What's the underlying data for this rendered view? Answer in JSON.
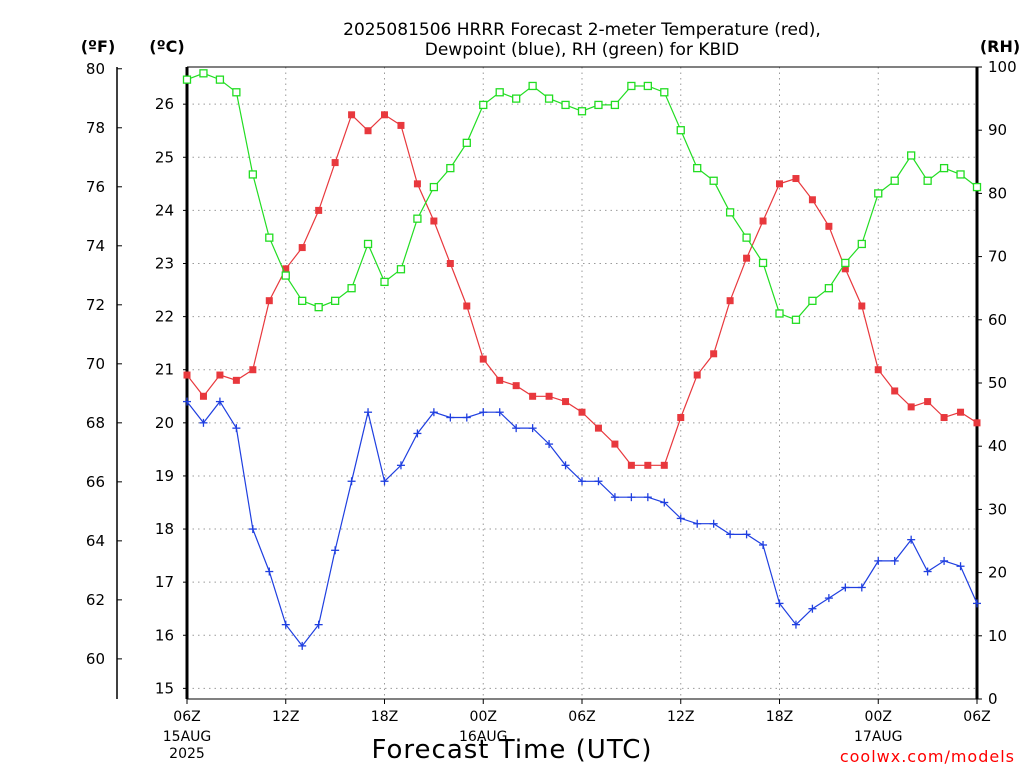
{
  "chart_data": {
    "type": "line",
    "title_line1": "2025081506 HRRR Forecast 2-meter Temperature (red),",
    "title_line2": "Dewpoint (blue), RH (green) for KBID",
    "xlabel": "Forecast Time (UTC)",
    "credit": "coolwx.com/models",
    "unit_labels": {
      "fahrenheit": "(ºF)",
      "celsius": "(ºC)",
      "rh": "(RH)"
    },
    "x_ticks": [
      {
        "hour": 0,
        "label": "06Z",
        "date": "15AUG",
        "year": "2025"
      },
      {
        "hour": 6,
        "label": "12Z"
      },
      {
        "hour": 12,
        "label": "18Z"
      },
      {
        "hour": 18,
        "label": "00Z",
        "date": "16AUG"
      },
      {
        "hour": 24,
        "label": "06Z"
      },
      {
        "hour": 30,
        "label": "12Z"
      },
      {
        "hour": 36,
        "label": "18Z"
      },
      {
        "hour": 42,
        "label": "00Z",
        "date": "17AUG"
      },
      {
        "hour": 48,
        "label": "06Z"
      }
    ],
    "xlim": [
      0,
      48
    ],
    "celsius_axis": {
      "ylim": [
        14.8,
        26.7
      ],
      "ticks": [
        15,
        16,
        17,
        18,
        19,
        20,
        21,
        22,
        23,
        24,
        25,
        26
      ]
    },
    "fahrenheit_ticks": [
      60,
      62,
      64,
      66,
      68,
      70,
      72,
      74,
      76,
      78,
      80
    ],
    "rh_axis": {
      "ylim": [
        0,
        100
      ],
      "ticks": [
        0,
        10,
        20,
        30,
        40,
        50,
        60,
        70,
        80,
        90,
        100
      ]
    },
    "grid": true,
    "series": [
      {
        "name": "2-meter Temperature",
        "axis": "celsius",
        "color": "#e8383d",
        "marker": "filled-square",
        "values": [
          20.9,
          20.5,
          20.9,
          20.8,
          21.0,
          22.3,
          22.9,
          23.3,
          24.0,
          24.9,
          25.8,
          25.5,
          25.8,
          25.6,
          24.5,
          23.8,
          23.0,
          22.2,
          21.2,
          20.8,
          20.7,
          20.5,
          20.5,
          20.4,
          20.2,
          19.9,
          19.6,
          19.2,
          19.2,
          19.2,
          20.1,
          20.9,
          21.3,
          22.3,
          23.1,
          23.8,
          24.5,
          24.6,
          24.2,
          23.7,
          22.9,
          22.2,
          21.0,
          20.6,
          20.3,
          20.4,
          20.1,
          20.2,
          20.0
        ]
      },
      {
        "name": "Dewpoint",
        "axis": "celsius",
        "color": "#1f3fe0",
        "marker": "plus",
        "values": [
          20.4,
          20.0,
          20.4,
          19.9,
          18.0,
          17.2,
          16.2,
          15.8,
          16.2,
          17.6,
          18.9,
          20.2,
          18.9,
          19.2,
          19.8,
          20.2,
          20.1,
          20.1,
          20.2,
          20.2,
          19.9,
          19.9,
          19.6,
          19.2,
          18.9,
          18.9,
          18.6,
          18.6,
          18.6,
          18.5,
          18.2,
          18.1,
          18.1,
          17.9,
          17.9,
          17.7,
          16.6,
          16.2,
          16.5,
          16.7,
          16.9,
          16.9,
          17.4,
          17.4,
          17.8,
          17.2,
          17.4,
          17.3,
          16.6
        ]
      },
      {
        "name": "RH",
        "axis": "rh",
        "color": "#22dd22",
        "marker": "open-square",
        "values": [
          98,
          99,
          98,
          96,
          83,
          73,
          67,
          63,
          62,
          63,
          65,
          72,
          66,
          68,
          76,
          81,
          84,
          88,
          94,
          96,
          95,
          97,
          95,
          94,
          93,
          94,
          94,
          97,
          97,
          96,
          90,
          84,
          82,
          77,
          73,
          69,
          61,
          60,
          63,
          65,
          69,
          72,
          80,
          82,
          86,
          82,
          84,
          83,
          81
        ]
      }
    ]
  }
}
